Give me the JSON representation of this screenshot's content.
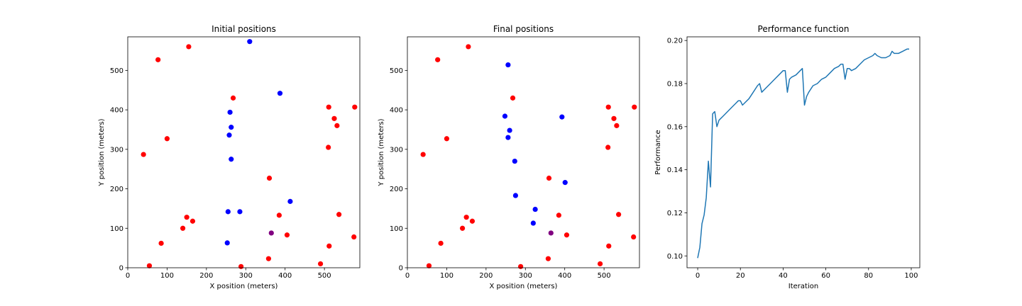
{
  "chart_data": [
    {
      "type": "scatter",
      "title": "Initial positions",
      "xlabel": "X position (meters)",
      "ylabel": "Y position (meters)",
      "xlim": [
        0,
        590
      ],
      "ylim": [
        0,
        585
      ],
      "xticks": [
        0,
        100,
        200,
        300,
        400,
        500
      ],
      "yticks": [
        0,
        100,
        200,
        300,
        400,
        500
      ],
      "grid": false,
      "series": [
        {
          "color": "#ff0000",
          "points": [
            [
              55,
              5
            ],
            [
              85,
              62
            ],
            [
              140,
              100
            ],
            [
              150,
              128
            ],
            [
              165,
              118
            ],
            [
              40,
              287
            ],
            [
              100,
              327
            ],
            [
              77,
              527
            ],
            [
              155,
              560
            ],
            [
              268,
              430
            ],
            [
              288,
              3
            ],
            [
              360,
              227
            ],
            [
              385,
              133
            ],
            [
              405,
              83
            ],
            [
              358,
              23
            ],
            [
              490,
              10
            ],
            [
              512,
              55
            ],
            [
              537,
              135
            ],
            [
              575,
              78
            ],
            [
              510,
              305
            ],
            [
              511,
              407
            ],
            [
              525,
              378
            ],
            [
              532,
              360
            ],
            [
              577,
              407
            ]
          ]
        },
        {
          "color": "#0000ff",
          "points": [
            [
              253,
              63
            ],
            [
              255,
              142
            ],
            [
              285,
              142
            ],
            [
              413,
              168
            ],
            [
              263,
              275
            ],
            [
              258,
              336
            ],
            [
              263,
              356
            ],
            [
              260,
              394
            ],
            [
              387,
              442
            ],
            [
              310,
              573
            ]
          ]
        },
        {
          "color": "#800080",
          "points": [
            [
              365,
              88
            ]
          ]
        }
      ]
    },
    {
      "type": "scatter",
      "title": "Final positions",
      "xlabel": "X position (meters)",
      "ylabel": "Y position (meters)",
      "xlim": [
        0,
        590
      ],
      "ylim": [
        0,
        585
      ],
      "xticks": [
        0,
        100,
        200,
        300,
        400,
        500
      ],
      "yticks": [
        0,
        100,
        200,
        300,
        400,
        500
      ],
      "grid": false,
      "series": [
        {
          "color": "#ff0000",
          "points": [
            [
              55,
              5
            ],
            [
              85,
              62
            ],
            [
              140,
              100
            ],
            [
              150,
              128
            ],
            [
              165,
              118
            ],
            [
              40,
              287
            ],
            [
              100,
              327
            ],
            [
              77,
              527
            ],
            [
              155,
              560
            ],
            [
              268,
              430
            ],
            [
              288,
              3
            ],
            [
              360,
              227
            ],
            [
              385,
              133
            ],
            [
              405,
              83
            ],
            [
              358,
              23
            ],
            [
              490,
              10
            ],
            [
              512,
              55
            ],
            [
              537,
              135
            ],
            [
              575,
              78
            ],
            [
              510,
              305
            ],
            [
              511,
              407
            ],
            [
              525,
              378
            ],
            [
              532,
              360
            ],
            [
              577,
              407
            ]
          ]
        },
        {
          "color": "#0000ff",
          "points": [
            [
              320,
              113
            ],
            [
              325,
              148
            ],
            [
              275,
              183
            ],
            [
              273,
              270
            ],
            [
              256,
              330
            ],
            [
              260,
              348
            ],
            [
              248,
              384
            ],
            [
              393,
              382
            ],
            [
              401,
              216
            ],
            [
              256,
              514
            ]
          ]
        },
        {
          "color": "#800080",
          "points": [
            [
              365,
              88
            ]
          ]
        }
      ]
    },
    {
      "type": "line",
      "title": "Performance function",
      "xlabel": "Iteration",
      "ylabel": "Performance",
      "xlim": [
        -5,
        104
      ],
      "ylim": [
        0.0945,
        0.2017
      ],
      "xticks": [
        0,
        20,
        40,
        60,
        80,
        100
      ],
      "yticks": [
        0.1,
        0.12,
        0.14,
        0.16,
        0.18,
        0.2
      ],
      "ytick_labels": [
        "0.10",
        "0.12",
        "0.14",
        "0.16",
        "0.18",
        "0.20"
      ],
      "grid": false,
      "series": [
        {
          "color": "#1f77b4",
          "x": [
            0,
            1,
            2,
            3,
            4,
            5,
            6,
            7,
            8,
            9,
            10,
            12,
            14,
            16,
            18,
            19,
            20,
            21,
            22,
            24,
            26,
            28,
            29,
            30,
            32,
            34,
            36,
            38,
            40,
            41,
            42,
            43,
            44,
            46,
            48,
            49,
            50,
            51,
            52,
            54,
            56,
            58,
            60,
            62,
            64,
            66,
            67,
            68,
            69,
            70,
            71,
            72,
            74,
            76,
            78,
            80,
            82,
            83,
            84,
            86,
            88,
            90,
            91,
            92,
            94,
            96,
            98,
            99
          ],
          "y": [
            0.099,
            0.104,
            0.115,
            0.119,
            0.127,
            0.144,
            0.132,
            0.166,
            0.167,
            0.16,
            0.163,
            0.165,
            0.167,
            0.169,
            0.171,
            0.172,
            0.172,
            0.17,
            0.171,
            0.173,
            0.176,
            0.179,
            0.18,
            0.176,
            0.178,
            0.18,
            0.182,
            0.184,
            0.186,
            0.186,
            0.176,
            0.182,
            0.183,
            0.184,
            0.186,
            0.187,
            0.17,
            0.174,
            0.176,
            0.179,
            0.18,
            0.182,
            0.183,
            0.185,
            0.187,
            0.188,
            0.189,
            0.189,
            0.182,
            0.187,
            0.187,
            0.186,
            0.187,
            0.189,
            0.191,
            0.192,
            0.193,
            0.194,
            0.193,
            0.192,
            0.192,
            0.193,
            0.195,
            0.194,
            0.194,
            0.195,
            0.196,
            0.196
          ]
        }
      ]
    }
  ]
}
